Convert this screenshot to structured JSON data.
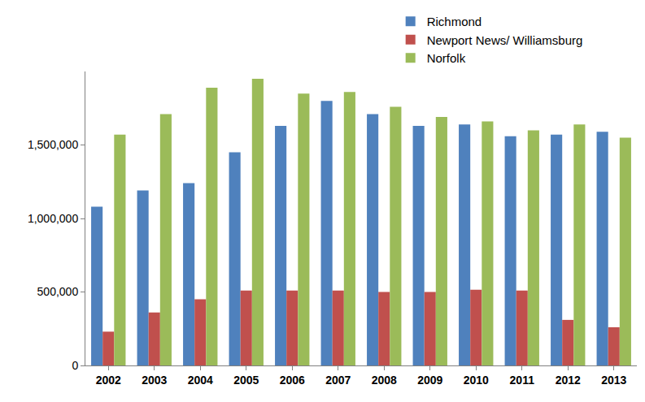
{
  "chart_data": {
    "type": "bar",
    "categories": [
      "2002",
      "2003",
      "2004",
      "2005",
      "2006",
      "2007",
      "2008",
      "2009",
      "2010",
      "2011",
      "2012",
      "2013"
    ],
    "series": [
      {
        "name": "Richmond",
        "color": "#4F81BD",
        "values": [
          1080000,
          1190000,
          1240000,
          1450000,
          1630000,
          1800000,
          1710000,
          1630000,
          1640000,
          1560000,
          1570000,
          1590000
        ]
      },
      {
        "name": "Newport News/ Williamsburg",
        "color": "#C0504D",
        "values": [
          230000,
          360000,
          450000,
          510000,
          510000,
          510000,
          500000,
          500000,
          515000,
          510000,
          310000,
          260000
        ]
      },
      {
        "name": "Norfolk",
        "color": "#9BBB59",
        "values": [
          1570000,
          1710000,
          1890000,
          1950000,
          1850000,
          1860000,
          1760000,
          1690000,
          1660000,
          1600000,
          1640000,
          1550000
        ]
      }
    ],
    "ylim": [
      0,
      2000000
    ],
    "yticks": [
      0,
      {
        "value": 500000,
        "label": "500,000"
      },
      {
        "value": 1000000,
        "label": "1,000,000"
      },
      {
        "value": 1500000,
        "label": "1,500,000"
      }
    ],
    "grid": false,
    "legend": "top-right"
  }
}
